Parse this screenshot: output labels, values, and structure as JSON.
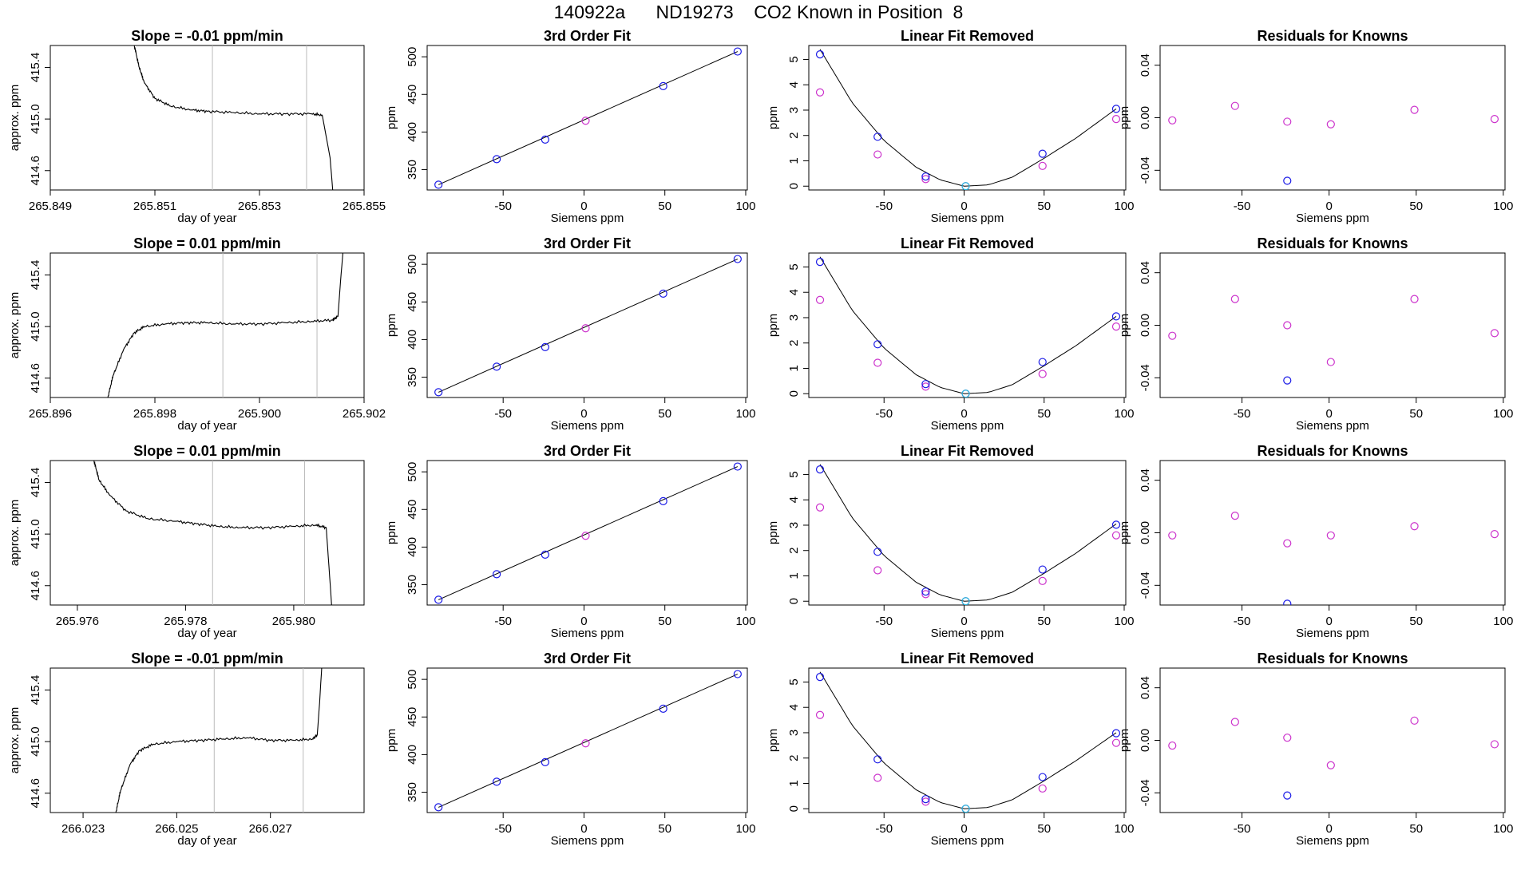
{
  "title": "140922a      ND19273    CO2 Known in Position  8",
  "colors": {
    "frame": "#000000",
    "curve": "#000000",
    "vline": "#bbbbbb",
    "open_blue": "#1a1ae6",
    "open_magenta": "#cc33cc",
    "open_cyan": "#22bbdd",
    "noise": "#ff4444"
  },
  "chart_data": [
    {
      "id": "r1-trace",
      "type": "line",
      "title": "Slope =  -0.01  ppm/min",
      "xlabel": "day of year",
      "ylabel": "approx. ppm",
      "xlim": [
        265.849,
        265.855
      ],
      "ylim": [
        414.45,
        415.57
      ],
      "xticks": [
        265.849,
        265.851,
        265.853,
        265.855
      ],
      "xtick_labels": [
        "265.849",
        "265.851",
        "265.853",
        "265.855"
      ],
      "yticks": [
        414.6,
        415.0,
        415.4
      ],
      "ytick_labels": [
        "414.6",
        "415.0",
        "415.4"
      ],
      "vlines": [
        265.8521,
        265.8539
      ],
      "x": [
        265.8506,
        265.8507,
        265.8508,
        265.851,
        265.8513,
        265.8517,
        265.852,
        265.8525,
        265.853,
        265.8535,
        265.854,
        265.8542,
        265.85435,
        265.8544
      ],
      "y": [
        415.58,
        415.4,
        415.28,
        415.16,
        415.1,
        415.07,
        415.06,
        415.05,
        415.04,
        415.04,
        415.04,
        415.03,
        414.7,
        414.45
      ]
    },
    {
      "id": "r1-fit",
      "type": "scatter",
      "title": "3rd Order Fit",
      "xlabel": "Siemens ppm",
      "ylabel": "ppm",
      "xlim": [
        -97,
        101
      ],
      "ylim": [
        323,
        515
      ],
      "xticks": [
        -50,
        0,
        50,
        100
      ],
      "xtick_labels": [
        "-50",
        "0",
        "50",
        "100"
      ],
      "yticks": [
        350,
        400,
        450,
        500
      ],
      "ytick_labels": [
        "350",
        "400",
        "450",
        "500"
      ],
      "x": [
        -90,
        -54,
        -24,
        1,
        49,
        95
      ],
      "y": [
        330,
        364,
        390,
        415,
        461,
        507
      ],
      "point_colors": [
        "open_blue",
        "open_blue",
        "open_blue",
        "open_magenta",
        "open_blue",
        "open_blue"
      ]
    },
    {
      "id": "r1-lin",
      "type": "scatter",
      "title": "Linear Fit Removed",
      "xlabel": "Siemens ppm",
      "ylabel": "ppm",
      "xlim": [
        -97,
        101
      ],
      "ylim": [
        -0.15,
        5.55
      ],
      "xticks": [
        -50,
        0,
        50,
        100
      ],
      "xtick_labels": [
        "-50",
        "0",
        "50",
        "100"
      ],
      "yticks": [
        0,
        1,
        2,
        3,
        4,
        5
      ],
      "ytick_labels": [
        "0",
        "1",
        "2",
        "3",
        "4",
        "5"
      ],
      "x": [
        -90,
        -54,
        -24,
        1,
        49,
        95
      ],
      "y_known": [
        5.2,
        1.95,
        0.38,
        0.0,
        1.28,
        3.05
      ],
      "y_target": [
        3.7,
        1.25,
        0.28,
        0.0,
        0.8,
        2.65
      ],
      "curve_x": [
        -90,
        -70,
        -50,
        -30,
        -15,
        0,
        15,
        30,
        50,
        70,
        95
      ],
      "curve_y": [
        5.4,
        3.3,
        1.8,
        0.75,
        0.25,
        0.0,
        0.05,
        0.35,
        1.1,
        1.9,
        3.05
      ]
    },
    {
      "id": "r1-res",
      "type": "scatter",
      "title": "Residuals for Knowns",
      "xlabel": "Siemens ppm",
      "ylabel": "ppm",
      "xlim": [
        -97,
        101
      ],
      "ylim": [
        -0.055,
        0.055
      ],
      "xticks": [
        -50,
        0,
        50,
        100
      ],
      "xtick_labels": [
        "-50",
        "0",
        "50",
        "100"
      ],
      "yticks": [
        -0.04,
        0.0,
        0.04
      ],
      "ytick_labels": [
        "-0.04",
        "0.00",
        "0.04"
      ],
      "x": [
        -90,
        -54,
        -24,
        1,
        49,
        95
      ],
      "y": [
        -0.002,
        0.009,
        -0.003,
        -0.005,
        0.006,
        -0.001
      ],
      "point_colors": [
        "open_magenta",
        "open_magenta",
        "open_magenta",
        "open_magenta",
        "open_magenta",
        "open_magenta"
      ],
      "extra_points": [
        {
          "x": -24,
          "y": -0.048,
          "color": "open_blue"
        }
      ]
    },
    {
      "id": "r2-trace",
      "type": "line",
      "title": "Slope =  0.01  ppm/min",
      "xlabel": "day of year",
      "ylabel": "approx. ppm",
      "xlim": [
        265.896,
        265.902
      ],
      "ylim": [
        414.45,
        415.57
      ],
      "xticks": [
        265.896,
        265.898,
        265.9,
        265.902
      ],
      "xtick_labels": [
        "265.896",
        "265.898",
        "265.900",
        "265.902"
      ],
      "yticks": [
        414.6,
        415.0,
        415.4
      ],
      "ytick_labels": [
        "414.6",
        "415.0",
        "415.4"
      ],
      "vlines": [
        265.8993,
        265.9011
      ],
      "x": [
        265.8971,
        265.8972,
        265.8974,
        265.8976,
        265.8978,
        265.8982,
        265.8986,
        265.899,
        265.8995,
        265.9,
        265.9005,
        265.901,
        265.9014,
        265.9015,
        265.90155,
        265.9016
      ],
      "y": [
        414.45,
        414.62,
        414.82,
        414.95,
        415.0,
        415.02,
        415.03,
        415.03,
        415.02,
        415.02,
        415.03,
        415.04,
        415.05,
        415.08,
        415.35,
        415.6
      ]
    },
    {
      "id": "r2-fit",
      "type": "scatter",
      "title": "3rd Order Fit",
      "xlabel": "Siemens ppm",
      "ylabel": "ppm",
      "xlim": [
        -97,
        101
      ],
      "ylim": [
        323,
        515
      ],
      "xticks": [
        -50,
        0,
        50,
        100
      ],
      "xtick_labels": [
        "-50",
        "0",
        "50",
        "100"
      ],
      "yticks": [
        350,
        400,
        450,
        500
      ],
      "ytick_labels": [
        "350",
        "400",
        "450",
        "500"
      ],
      "x": [
        -90,
        -54,
        -24,
        1,
        49,
        95
      ],
      "y": [
        330,
        364,
        390,
        415,
        461,
        507
      ],
      "point_colors": [
        "open_blue",
        "open_blue",
        "open_blue",
        "open_magenta",
        "open_blue",
        "open_blue"
      ]
    },
    {
      "id": "r2-lin",
      "type": "scatter",
      "title": "Linear Fit Removed",
      "xlabel": "Siemens ppm",
      "ylabel": "ppm",
      "xlim": [
        -97,
        101
      ],
      "ylim": [
        -0.15,
        5.55
      ],
      "xticks": [
        -50,
        0,
        50,
        100
      ],
      "xtick_labels": [
        "-50",
        "0",
        "50",
        "100"
      ],
      "yticks": [
        0,
        1,
        2,
        3,
        4,
        5
      ],
      "ytick_labels": [
        "0",
        "1",
        "2",
        "3",
        "4",
        "5"
      ],
      "x": [
        -90,
        -54,
        -24,
        1,
        49,
        95
      ],
      "y_known": [
        5.2,
        1.95,
        0.38,
        0.0,
        1.25,
        3.05
      ],
      "y_target": [
        3.7,
        1.22,
        0.28,
        0.0,
        0.78,
        2.65
      ],
      "curve_x": [
        -90,
        -70,
        -50,
        -30,
        -15,
        0,
        15,
        30,
        50,
        70,
        95
      ],
      "curve_y": [
        5.4,
        3.3,
        1.8,
        0.75,
        0.25,
        0.0,
        0.05,
        0.35,
        1.1,
        1.9,
        3.05
      ]
    },
    {
      "id": "r2-res",
      "type": "scatter",
      "title": "Residuals for Knowns",
      "xlabel": "Siemens ppm",
      "ylabel": "ppm",
      "xlim": [
        -97,
        101
      ],
      "ylim": [
        -0.055,
        0.055
      ],
      "xticks": [
        -50,
        0,
        50,
        100
      ],
      "xtick_labels": [
        "-50",
        "0",
        "50",
        "100"
      ],
      "yticks": [
        -0.04,
        0.0,
        0.04
      ],
      "ytick_labels": [
        "-0.04",
        "0.00",
        "0.04"
      ],
      "x": [
        -90,
        -54,
        -24,
        1,
        49,
        95
      ],
      "y": [
        -0.008,
        0.02,
        0.0,
        -0.028,
        0.02,
        -0.006
      ],
      "point_colors": [
        "open_magenta",
        "open_magenta",
        "open_magenta",
        "open_magenta",
        "open_magenta",
        "open_magenta"
      ],
      "extra_points": [
        {
          "x": -24,
          "y": -0.042,
          "color": "open_blue"
        }
      ]
    },
    {
      "id": "r3-trace",
      "type": "line",
      "title": "Slope =  0.01  ppm/min",
      "xlabel": "day of year",
      "ylabel": "approx. ppm",
      "xlim": [
        265.9755,
        265.9813
      ],
      "ylim": [
        414.45,
        415.57
      ],
      "xticks": [
        265.976,
        265.978,
        265.98
      ],
      "xtick_labels": [
        "265.976",
        "265.978",
        "265.980"
      ],
      "yticks": [
        414.6,
        415.0,
        415.4
      ],
      "ytick_labels": [
        "414.6",
        "415.0",
        "415.4"
      ],
      "vlines": [
        265.9785,
        265.9802
      ],
      "x": [
        265.9763,
        265.9764,
        265.9766,
        265.9769,
        265.9773,
        265.9778,
        265.9782,
        265.9786,
        265.979,
        265.9795,
        265.98,
        265.9804,
        265.9806,
        265.98065,
        265.9807
      ],
      "y": [
        415.58,
        415.42,
        415.3,
        415.18,
        415.12,
        415.1,
        415.08,
        415.06,
        415.05,
        415.05,
        415.06,
        415.07,
        415.05,
        414.75,
        414.45
      ]
    },
    {
      "id": "r3-fit",
      "type": "scatter",
      "title": "3rd Order Fit",
      "xlabel": "Siemens ppm",
      "ylabel": "ppm",
      "xlim": [
        -97,
        101
      ],
      "ylim": [
        323,
        515
      ],
      "xticks": [
        -50,
        0,
        50,
        100
      ],
      "xtick_labels": [
        "-50",
        "0",
        "50",
        "100"
      ],
      "yticks": [
        350,
        400,
        450,
        500
      ],
      "ytick_labels": [
        "350",
        "400",
        "450",
        "500"
      ],
      "x": [
        -90,
        -54,
        -24,
        1,
        49,
        95
      ],
      "y": [
        330,
        364,
        390,
        415,
        461,
        507
      ],
      "point_colors": [
        "open_blue",
        "open_blue",
        "open_blue",
        "open_magenta",
        "open_blue",
        "open_blue"
      ]
    },
    {
      "id": "r3-lin",
      "type": "scatter",
      "title": "Linear Fit Removed",
      "xlabel": "Siemens ppm",
      "ylabel": "ppm",
      "xlim": [
        -97,
        101
      ],
      "ylim": [
        -0.15,
        5.55
      ],
      "xticks": [
        -50,
        0,
        50,
        100
      ],
      "xtick_labels": [
        "-50",
        "0",
        "50",
        "100"
      ],
      "yticks": [
        0,
        1,
        2,
        3,
        4,
        5
      ],
      "ytick_labels": [
        "0",
        "1",
        "2",
        "3",
        "4",
        "5"
      ],
      "x": [
        -90,
        -54,
        -24,
        1,
        49,
        95
      ],
      "y_known": [
        5.2,
        1.95,
        0.38,
        0.0,
        1.25,
        3.02
      ],
      "y_target": [
        3.7,
        1.22,
        0.28,
        0.0,
        0.8,
        2.6
      ],
      "curve_x": [
        -90,
        -70,
        -50,
        -30,
        -15,
        0,
        15,
        30,
        50,
        70,
        95
      ],
      "curve_y": [
        5.4,
        3.3,
        1.8,
        0.75,
        0.25,
        0.0,
        0.05,
        0.35,
        1.1,
        1.9,
        3.05
      ]
    },
    {
      "id": "r3-res",
      "type": "scatter",
      "title": "Residuals for Knowns",
      "xlabel": "Siemens ppm",
      "ylabel": "ppm",
      "xlim": [
        -97,
        101
      ],
      "ylim": [
        -0.055,
        0.055
      ],
      "xticks": [
        -50,
        0,
        50,
        100
      ],
      "xtick_labels": [
        "-50",
        "0",
        "50",
        "100"
      ],
      "yticks": [
        -0.04,
        0.0,
        0.04
      ],
      "ytick_labels": [
        "-0.04",
        "0.00",
        "0.04"
      ],
      "x": [
        -90,
        -54,
        -24,
        1,
        49,
        95
      ],
      "y": [
        -0.002,
        0.013,
        -0.008,
        -0.002,
        0.005,
        -0.001
      ],
      "point_colors": [
        "open_magenta",
        "open_magenta",
        "open_magenta",
        "open_magenta",
        "open_magenta",
        "open_magenta"
      ],
      "extra_points": [
        {
          "x": -24,
          "y": -0.054,
          "color": "open_blue"
        }
      ]
    },
    {
      "id": "r4-trace",
      "type": "line",
      "title": "Slope =  -0.01  ppm/min",
      "xlabel": "day of year",
      "ylabel": "approx. ppm",
      "xlim": [
        266.0223,
        266.029
      ],
      "ylim": [
        414.45,
        415.57
      ],
      "xticks": [
        266.023,
        266.025,
        266.027
      ],
      "xtick_labels": [
        "266.023",
        "266.025",
        "266.027"
      ],
      "yticks": [
        414.6,
        415.0,
        415.4
      ],
      "ytick_labels": [
        "414.6",
        "415.0",
        "415.4"
      ],
      "vlines": [
        266.0258,
        266.0277
      ],
      "x": [
        266.0237,
        266.0238,
        266.024,
        266.0242,
        266.0245,
        266.025,
        266.0255,
        266.026,
        266.0265,
        266.027,
        266.0275,
        266.0279,
        266.028,
        266.02805,
        266.0281
      ],
      "y": [
        414.45,
        414.62,
        414.82,
        414.93,
        414.98,
        415.0,
        415.01,
        415.02,
        415.03,
        415.01,
        415.01,
        415.02,
        415.05,
        415.3,
        415.6
      ]
    },
    {
      "id": "r4-fit",
      "type": "scatter",
      "title": "3rd Order Fit",
      "xlabel": "Siemens ppm",
      "ylabel": "ppm",
      "xlim": [
        -97,
        101
      ],
      "ylim": [
        323,
        515
      ],
      "xticks": [
        -50,
        0,
        50,
        100
      ],
      "xtick_labels": [
        "-50",
        "0",
        "50",
        "100"
      ],
      "yticks": [
        350,
        400,
        450,
        500
      ],
      "ytick_labels": [
        "350",
        "400",
        "450",
        "500"
      ],
      "x": [
        -90,
        -54,
        -24,
        1,
        49,
        95
      ],
      "y": [
        330,
        364,
        390,
        415,
        461,
        507
      ],
      "point_colors": [
        "open_blue",
        "open_blue",
        "open_blue",
        "open_magenta",
        "open_blue",
        "open_blue"
      ]
    },
    {
      "id": "r4-lin",
      "type": "scatter",
      "title": "Linear Fit Removed",
      "xlabel": "Siemens ppm",
      "ylabel": "ppm",
      "xlim": [
        -97,
        101
      ],
      "ylim": [
        -0.15,
        5.55
      ],
      "xticks": [
        -50,
        0,
        50,
        100
      ],
      "xtick_labels": [
        "-50",
        "0",
        "50",
        "100"
      ],
      "yticks": [
        0,
        1,
        2,
        3,
        4,
        5
      ],
      "ytick_labels": [
        "0",
        "1",
        "2",
        "3",
        "4",
        "5"
      ],
      "x": [
        -90,
        -54,
        -24,
        1,
        49,
        95
      ],
      "y_known": [
        5.2,
        1.95,
        0.38,
        0.0,
        1.25,
        2.98
      ],
      "y_target": [
        3.7,
        1.22,
        0.28,
        0.0,
        0.8,
        2.6
      ],
      "curve_x": [
        -90,
        -70,
        -50,
        -30,
        -15,
        0,
        15,
        30,
        50,
        70,
        95
      ],
      "curve_y": [
        5.4,
        3.3,
        1.8,
        0.75,
        0.25,
        0.0,
        0.05,
        0.35,
        1.1,
        1.9,
        3.0
      ]
    },
    {
      "id": "r4-res",
      "type": "scatter",
      "title": "Residuals for Knowns",
      "xlabel": "Siemens ppm",
      "ylabel": "ppm",
      "xlim": [
        -97,
        101
      ],
      "ylim": [
        -0.055,
        0.055
      ],
      "xticks": [
        -50,
        0,
        50,
        100
      ],
      "xtick_labels": [
        "-50",
        "0",
        "50",
        "100"
      ],
      "yticks": [
        -0.04,
        0.0,
        0.04
      ],
      "ytick_labels": [
        "-0.04",
        "0.00",
        "0.04"
      ],
      "x": [
        -90,
        -54,
        -24,
        1,
        49,
        95
      ],
      "y": [
        -0.004,
        0.014,
        0.002,
        -0.019,
        0.015,
        -0.003
      ],
      "point_colors": [
        "open_magenta",
        "open_magenta",
        "open_magenta",
        "open_magenta",
        "open_magenta",
        "open_magenta"
      ],
      "extra_points": [
        {
          "x": -24,
          "y": -0.042,
          "color": "open_blue"
        }
      ]
    }
  ]
}
